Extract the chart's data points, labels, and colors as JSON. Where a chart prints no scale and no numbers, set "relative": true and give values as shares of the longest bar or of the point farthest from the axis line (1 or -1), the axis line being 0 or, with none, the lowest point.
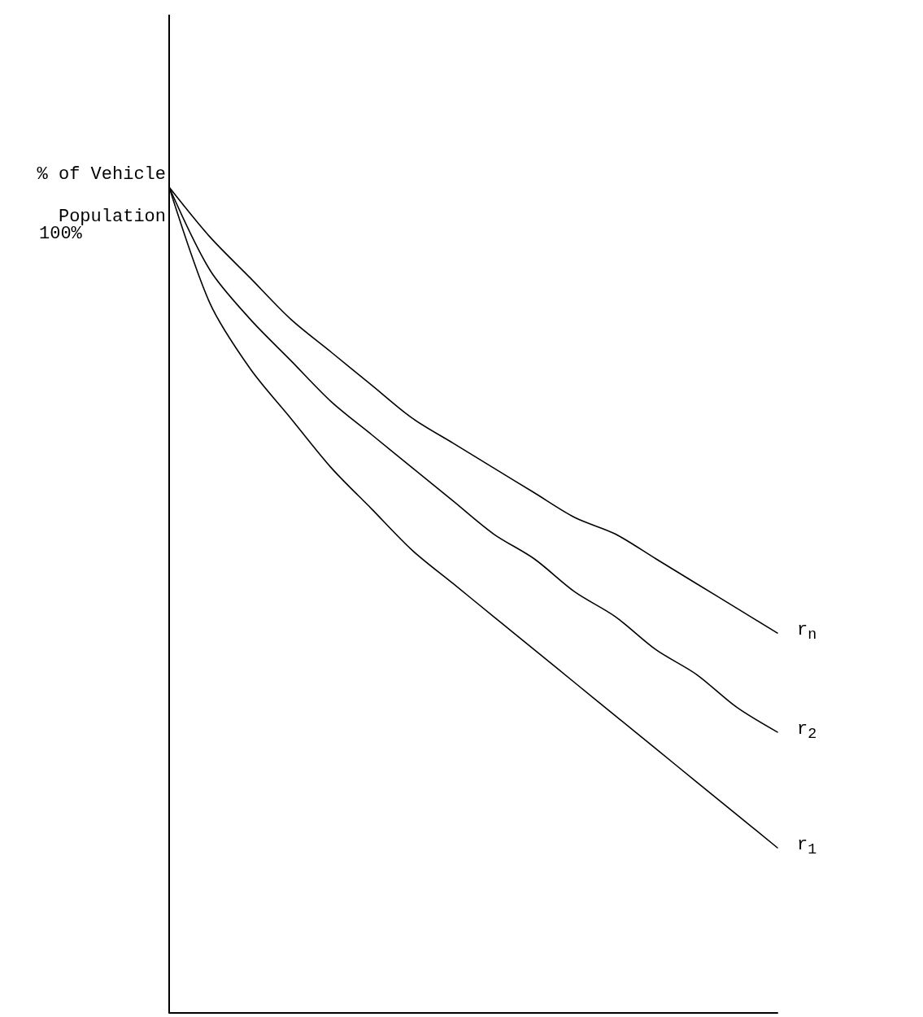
{
  "chart_data": {
    "type": "line",
    "relative": true,
    "ylabel": "% of Vehicle Population",
    "annotations": [
      "100%"
    ],
    "categories": [
      null,
      null,
      null,
      null,
      null,
      null,
      null,
      null,
      null,
      null,
      null,
      null,
      null,
      null,
      null,
      null
    ],
    "series": [
      {
        "name": "r$_{n}$",
        "color": "#000000",
        "values": [
          1,
          0.94,
          0.89,
          0.84,
          0.8,
          0.76,
          0.72,
          0.69,
          0.66,
          0.63,
          0.6,
          0.58,
          0.55,
          0.52,
          0.49,
          0.46
        ]
      },
      {
        "name": "r$_{2}$",
        "color": "#000000",
        "values": [
          1,
          0.9,
          0.84,
          0.79,
          0.74,
          0.7,
          0.66,
          0.62,
          0.58,
          0.55,
          0.51,
          0.48,
          0.44,
          0.41,
          0.37,
          0.34
        ]
      },
      {
        "name": "r$_{1}$",
        "color": "#000000",
        "values": [
          1,
          0.86,
          0.78,
          0.72,
          0.66,
          0.61,
          0.56,
          0.52,
          0.48,
          0.44,
          0.4,
          0.36,
          0.32,
          0.28,
          0.24,
          0.2
        ]
      }
    ],
    "grid": false,
    "legend": false,
    "marker": "none",
    "line_style": "solid"
  }
}
